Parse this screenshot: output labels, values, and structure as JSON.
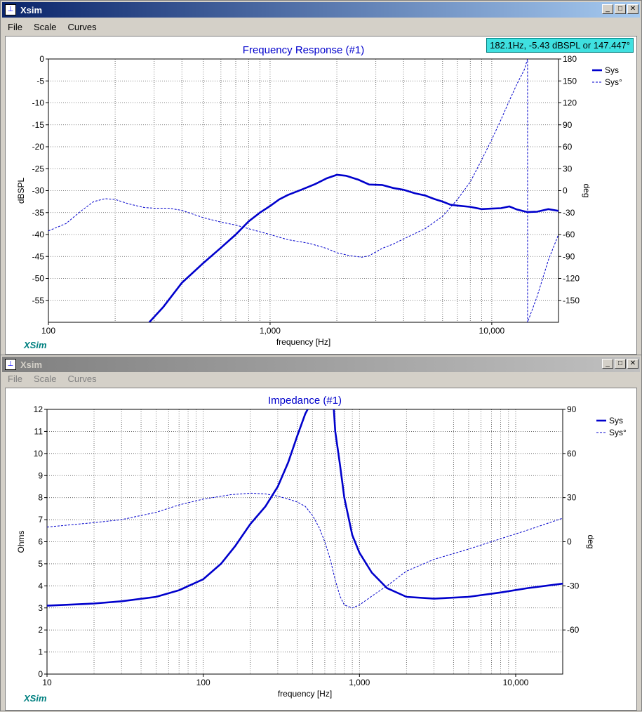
{
  "windows": [
    {
      "title": "Xsim",
      "menu": [
        "File",
        "Scale",
        "Curves"
      ],
      "buttons": {
        "min": "_",
        "max": "□",
        "close": "✕"
      },
      "brand": "XSim",
      "readout": "182.1Hz, -5.43 dBSPL or 147.447°"
    },
    {
      "title": "Xsim",
      "menu": [
        "File",
        "Scale",
        "Curves"
      ],
      "buttons": {
        "min": "_",
        "max": "□",
        "close": "✕"
      },
      "brand": "XSim"
    }
  ],
  "chart_data": [
    {
      "type": "line",
      "title": "Frequency Response (#1)",
      "xlabel": "frequency [Hz]",
      "ylabel": "dBSPL",
      "y2label": "deg",
      "xscale": "log",
      "xlim": [
        100,
        20000
      ],
      "ylim": [
        -60,
        0
      ],
      "y2lim": [
        -180,
        180
      ],
      "xticks": [
        {
          "value": 100,
          "label": "100"
        },
        {
          "value": 1000,
          "label": "1,000"
        },
        {
          "value": 10000,
          "label": "10,000"
        }
      ],
      "yticks": [
        {
          "value": 0,
          "label": "0"
        },
        {
          "value": -5,
          "label": "-5"
        },
        {
          "value": -10,
          "label": "-10"
        },
        {
          "value": -15,
          "label": "-15"
        },
        {
          "value": -20,
          "label": "-20"
        },
        {
          "value": -25,
          "label": "-25"
        },
        {
          "value": -30,
          "label": "-30"
        },
        {
          "value": -35,
          "label": "-35"
        },
        {
          "value": -40,
          "label": "-40"
        },
        {
          "value": -45,
          "label": "-45"
        },
        {
          "value": -50,
          "label": "-50"
        },
        {
          "value": -55,
          "label": "-55"
        }
      ],
      "y2ticks": [
        {
          "value": 180,
          "label": "180"
        },
        {
          "value": 150,
          "label": "150"
        },
        {
          "value": 120,
          "label": "120"
        },
        {
          "value": 90,
          "label": "90"
        },
        {
          "value": 60,
          "label": "60"
        },
        {
          "value": 30,
          "label": "30"
        },
        {
          "value": 0,
          "label": "0"
        },
        {
          "value": -30,
          "label": "-30"
        },
        {
          "value": -60,
          "label": "-60"
        },
        {
          "value": -90,
          "label": "-90"
        },
        {
          "value": -120,
          "label": "-120"
        },
        {
          "value": -150,
          "label": "-150"
        }
      ],
      "grid": true,
      "legend_position": "top-right",
      "accent_color": "#0000cc",
      "series": [
        {
          "name": "Sys",
          "axis": "left",
          "style": "solid-thick",
          "points": [
            [
              285,
              -60
            ],
            [
              330,
              -56.5
            ],
            [
              400,
              -51
            ],
            [
              500,
              -46.5
            ],
            [
              600,
              -43
            ],
            [
              700,
              -40
            ],
            [
              800,
              -37
            ],
            [
              900,
              -35
            ],
            [
              1000,
              -33.5
            ],
            [
              1100,
              -32
            ],
            [
              1200,
              -31
            ],
            [
              1400,
              -29.7
            ],
            [
              1600,
              -28.5
            ],
            [
              1800,
              -27.2
            ],
            [
              2000,
              -26.4
            ],
            [
              2200,
              -26.6
            ],
            [
              2500,
              -27.5
            ],
            [
              2800,
              -28.6
            ],
            [
              3200,
              -28.7
            ],
            [
              3600,
              -29.4
            ],
            [
              4000,
              -29.8
            ],
            [
              4500,
              -30.6
            ],
            [
              5000,
              -31.1
            ],
            [
              5500,
              -31.9
            ],
            [
              6000,
              -32.5
            ],
            [
              6500,
              -33.2
            ],
            [
              7000,
              -33.4
            ],
            [
              8000,
              -33.7
            ],
            [
              9000,
              -34.2
            ],
            [
              10000,
              -34.1
            ],
            [
              11000,
              -34
            ],
            [
              12000,
              -33.6
            ],
            [
              13000,
              -34.3
            ],
            [
              14500,
              -34.9
            ],
            [
              16000,
              -34.8
            ],
            [
              18000,
              -34.2
            ],
            [
              20000,
              -34.6
            ]
          ]
        },
        {
          "name": "Sys°",
          "axis": "right",
          "style": "dashed",
          "points": [
            [
              100,
              -55
            ],
            [
              120,
              -45
            ],
            [
              140,
              -28
            ],
            [
              160,
              -15
            ],
            [
              180,
              -11
            ],
            [
              200,
              -12
            ],
            [
              230,
              -18
            ],
            [
              270,
              -23
            ],
            [
              300,
              -24
            ],
            [
              350,
              -24
            ],
            [
              400,
              -27
            ],
            [
              500,
              -37
            ],
            [
              600,
              -43
            ],
            [
              700,
              -47
            ],
            [
              800,
              -52
            ],
            [
              1000,
              -60
            ],
            [
              1200,
              -67
            ],
            [
              1500,
              -72
            ],
            [
              1800,
              -79
            ],
            [
              2000,
              -85
            ],
            [
              2300,
              -89
            ],
            [
              2600,
              -91
            ],
            [
              2800,
              -89
            ],
            [
              3200,
              -79
            ],
            [
              3600,
              -73
            ],
            [
              4000,
              -66
            ],
            [
              5000,
              -52
            ],
            [
              6000,
              -35
            ],
            [
              7000,
              -12
            ],
            [
              8000,
              12
            ],
            [
              9000,
              42
            ],
            [
              10000,
              70
            ],
            [
              11000,
              97
            ],
            [
              12000,
              123
            ],
            [
              13000,
              146
            ],
            [
              14000,
              165
            ],
            [
              14500,
              180
            ],
            [
              14500,
              -180
            ],
            [
              16000,
              -145
            ],
            [
              18000,
              -95
            ],
            [
              20000,
              -60
            ]
          ]
        }
      ]
    },
    {
      "type": "line",
      "title": "Impedance (#1)",
      "xlabel": "frequency [Hz]",
      "ylabel": "Ohms",
      "y2label": "deg",
      "xscale": "log",
      "xlim": [
        10,
        20000
      ],
      "ylim": [
        0,
        12
      ],
      "y2lim": [
        -90,
        90
      ],
      "xticks": [
        {
          "value": 10,
          "label": "10"
        },
        {
          "value": 100,
          "label": "100"
        },
        {
          "value": 1000,
          "label": "1,000"
        },
        {
          "value": 10000,
          "label": "10,000"
        }
      ],
      "yticks": [
        {
          "value": 0,
          "label": "0"
        },
        {
          "value": 1,
          "label": "1"
        },
        {
          "value": 2,
          "label": "2"
        },
        {
          "value": 3,
          "label": "3"
        },
        {
          "value": 4,
          "label": "4"
        },
        {
          "value": 5,
          "label": "5"
        },
        {
          "value": 6,
          "label": "6"
        },
        {
          "value": 7,
          "label": "7"
        },
        {
          "value": 8,
          "label": "8"
        },
        {
          "value": 9,
          "label": "9"
        },
        {
          "value": 10,
          "label": "10"
        },
        {
          "value": 11,
          "label": "11"
        },
        {
          "value": 12,
          "label": "12"
        }
      ],
      "y2ticks": [
        {
          "value": 90,
          "label": "90"
        },
        {
          "value": 60,
          "label": "60"
        },
        {
          "value": 30,
          "label": "30"
        },
        {
          "value": 0,
          "label": "0"
        },
        {
          "value": -30,
          "label": "-30"
        },
        {
          "value": -60,
          "label": "-60"
        }
      ],
      "grid": true,
      "legend_position": "top-right",
      "accent_color": "#0000cc",
      "series": [
        {
          "name": "Sys",
          "axis": "left",
          "style": "solid-thick",
          "points": [
            [
              10,
              3.1
            ],
            [
              20,
              3.2
            ],
            [
              30,
              3.3
            ],
            [
              50,
              3.5
            ],
            [
              70,
              3.8
            ],
            [
              100,
              4.3
            ],
            [
              130,
              5
            ],
            [
              160,
              5.8
            ],
            [
              200,
              6.8
            ],
            [
              250,
              7.6
            ],
            [
              300,
              8.5
            ],
            [
              350,
              9.6
            ],
            [
              400,
              10.8
            ],
            [
              450,
              11.8
            ],
            [
              500,
              12.4
            ],
            [
              680,
              12.4
            ],
            [
              700,
              11
            ],
            [
              750,
              9.5
            ],
            [
              800,
              8
            ],
            [
              900,
              6.3
            ],
            [
              1000,
              5.5
            ],
            [
              1200,
              4.6
            ],
            [
              1500,
              3.9
            ],
            [
              2000,
              3.5
            ],
            [
              3000,
              3.42
            ],
            [
              5000,
              3.5
            ],
            [
              8000,
              3.7
            ],
            [
              12000,
              3.9
            ],
            [
              20000,
              4.1
            ]
          ]
        },
        {
          "name": "Sys°",
          "axis": "right",
          "style": "dashed",
          "points": [
            [
              10,
              10
            ],
            [
              20,
              13
            ],
            [
              30,
              15
            ],
            [
              50,
              20
            ],
            [
              70,
              25
            ],
            [
              100,
              29
            ],
            [
              150,
              32
            ],
            [
              200,
              33
            ],
            [
              250,
              32.5
            ],
            [
              300,
              31
            ],
            [
              350,
              29
            ],
            [
              400,
              27
            ],
            [
              450,
              24
            ],
            [
              500,
              18
            ],
            [
              550,
              10
            ],
            [
              600,
              0
            ],
            [
              650,
              -12
            ],
            [
              700,
              -26
            ],
            [
              750,
              -37
            ],
            [
              800,
              -43
            ],
            [
              900,
              -45
            ],
            [
              1000,
              -43
            ],
            [
              1200,
              -37
            ],
            [
              1500,
              -30
            ],
            [
              2000,
              -20
            ],
            [
              3000,
              -12
            ],
            [
              5000,
              -5
            ],
            [
              8000,
              2
            ],
            [
              12000,
              8
            ],
            [
              20000,
              16
            ]
          ]
        }
      ]
    }
  ]
}
